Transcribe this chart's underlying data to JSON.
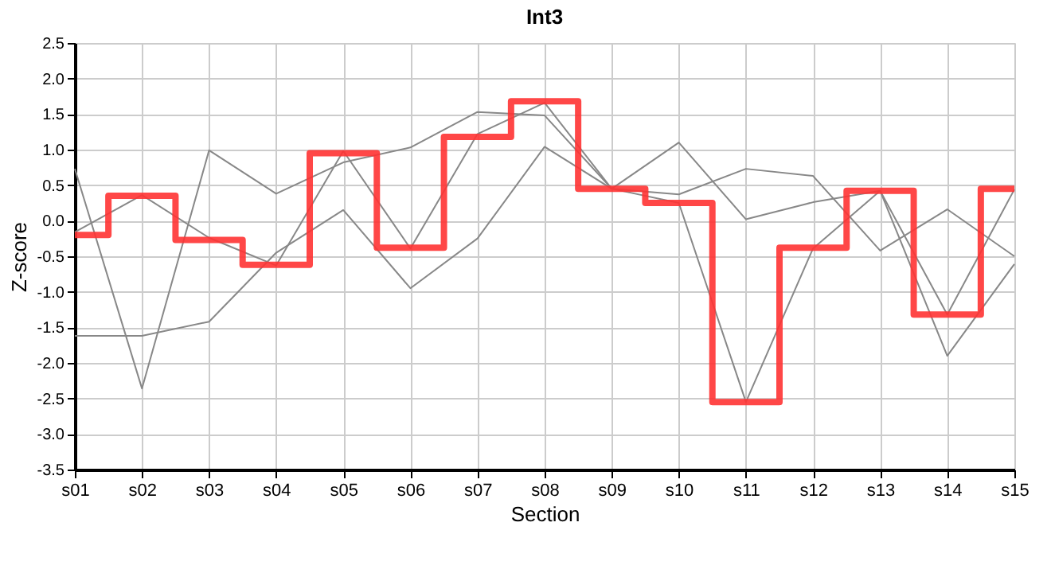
{
  "chart_data": {
    "type": "line",
    "title": "Int3",
    "xlabel": "Section",
    "ylabel": "Z-score",
    "categories": [
      "s01",
      "s02",
      "s03",
      "s04",
      "s05",
      "s06",
      "s07",
      "s08",
      "s09",
      "s10",
      "s11",
      "s12",
      "s13",
      "s14",
      "s15"
    ],
    "series": [
      {
        "type": "line",
        "color": "#888888",
        "values": [
          0.73,
          -2.36,
          0.99,
          0.38,
          0.82,
          1.03,
          1.53,
          1.48,
          0.45,
          0.37,
          0.73,
          0.63,
          -0.42,
          0.16,
          -0.5
        ]
      },
      {
        "type": "line",
        "color": "#888888",
        "values": [
          -0.16,
          0.36,
          -0.24,
          -0.63,
          0.98,
          -0.39,
          1.22,
          1.66,
          0.45,
          0.25,
          -2.55,
          -0.39,
          0.42,
          -1.32,
          0.44
        ]
      },
      {
        "type": "line",
        "color": "#888888",
        "values": [
          -1.62,
          -1.62,
          -1.42,
          -0.45,
          0.15,
          -0.95,
          -0.25,
          1.04,
          0.45,
          1.1,
          0.02,
          0.26,
          0.42,
          -1.9,
          -0.61
        ]
      },
      {
        "type": "step",
        "color": "#ff3333",
        "values": [
          -0.2,
          0.35,
          -0.27,
          -0.62,
          0.95,
          -0.38,
          1.18,
          1.68,
          0.45,
          0.25,
          -2.55,
          -0.38,
          0.42,
          -1.32,
          0.45
        ]
      }
    ],
    "ylim": [
      -3.5,
      2.5
    ],
    "yticks": [
      {
        "value": -3.5,
        "label": "-3.5"
      },
      {
        "value": -3,
        "label": "-3.0"
      },
      {
        "value": -2.5,
        "label": "-2.5"
      },
      {
        "value": -2,
        "label": "-2.0"
      },
      {
        "value": -1.5,
        "label": "-1.5"
      },
      {
        "value": -1,
        "label": "-1.0"
      },
      {
        "value": -0.5,
        "label": "-0.5"
      },
      {
        "value": 0,
        "label": "0.0"
      },
      {
        "value": 0.5,
        "label": "0.5"
      },
      {
        "value": 1,
        "label": "1.0"
      },
      {
        "value": 1.5,
        "label": "1.5"
      },
      {
        "value": 2,
        "label": "2.0"
      },
      {
        "value": 2.5,
        "label": "2.5"
      }
    ],
    "grid": true,
    "legend": false,
    "marker": "none",
    "line_style": "solid"
  }
}
